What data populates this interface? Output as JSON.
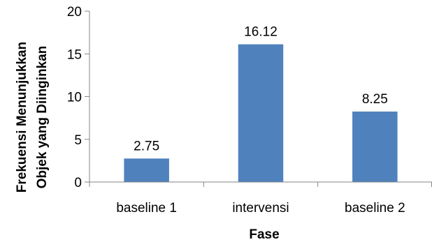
{
  "chart_data": {
    "type": "bar",
    "categories": [
      "baseline 1",
      "intervensi",
      "baseline 2"
    ],
    "values": [
      2.75,
      16.12,
      8.25
    ],
    "data_labels": [
      "2.75",
      "16.12",
      "8.25"
    ],
    "title": "",
    "xlabel": "Fase",
    "ylabel_lines": [
      "Frekuensi Menunjukkan",
      "Objek yang Diinginkan"
    ],
    "ylim": [
      0,
      20
    ],
    "yticks": [
      0,
      5,
      10,
      15,
      20
    ],
    "ytick_labels": [
      "0",
      "5",
      "10",
      "15",
      "20"
    ],
    "grid": false,
    "legend": "none",
    "bar_color": "#4f81bd",
    "axis_color": "#868686"
  }
}
